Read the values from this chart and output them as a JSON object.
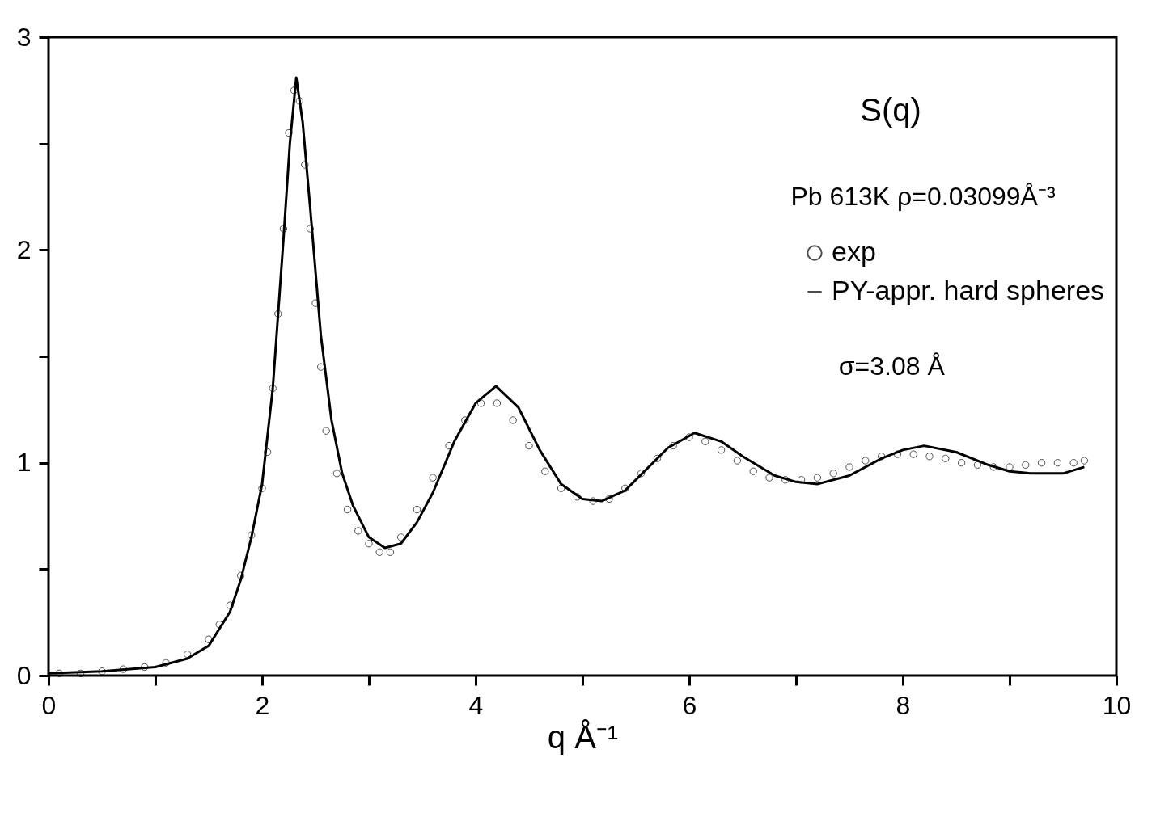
{
  "chart_data": {
    "type": "line",
    "xlabel": "q Å⁻¹",
    "annotations": [
      "S(q)",
      "Pb 613K  ρ=0.03099Å⁻³",
      "σ=3.08 Å"
    ],
    "xlim": [
      0,
      10
    ],
    "ylim": [
      0,
      3
    ],
    "xticks": [
      0,
      {
        "value": 1,
        "label": null
      },
      2,
      {
        "value": 3,
        "label": null
      },
      4,
      {
        "value": 5,
        "label": null
      },
      6,
      {
        "value": 7,
        "label": null
      },
      8,
      {
        "value": 9,
        "label": null
      },
      10
    ],
    "yticks": [
      0,
      {
        "value": 0.5,
        "label": null
      },
      1,
      {
        "value": 1.5,
        "label": null
      },
      2,
      {
        "value": 2.5,
        "label": null
      },
      3
    ],
    "grid": false,
    "legend": "top right",
    "series": [
      {
        "name": "exp",
        "type": "scatter",
        "marker": "circle",
        "color": "#000000",
        "x": [
          0.1,
          0.3,
          0.5,
          0.7,
          0.9,
          1.1,
          1.3,
          1.5,
          1.6,
          1.7,
          1.8,
          1.9,
          2.0,
          2.05,
          2.1,
          2.15,
          2.2,
          2.25,
          2.3,
          2.35,
          2.4,
          2.45,
          2.5,
          2.55,
          2.6,
          2.7,
          2.8,
          2.9,
          3.0,
          3.1,
          3.2,
          3.3,
          3.45,
          3.6,
          3.75,
          3.9,
          4.05,
          4.2,
          4.35,
          4.5,
          4.65,
          4.8,
          4.95,
          5.1,
          5.25,
          5.4,
          5.55,
          5.7,
          5.85,
          6.0,
          6.15,
          6.3,
          6.45,
          6.6,
          6.75,
          6.9,
          7.05,
          7.2,
          7.35,
          7.5,
          7.65,
          7.8,
          7.95,
          8.1,
          8.25,
          8.4,
          8.55,
          8.7,
          8.85,
          9.0,
          9.15,
          9.3,
          9.45,
          9.6,
          9.7
        ],
        "values": [
          0.01,
          0.01,
          0.02,
          0.03,
          0.04,
          0.06,
          0.1,
          0.17,
          0.24,
          0.33,
          0.47,
          0.66,
          0.88,
          1.05,
          1.35,
          1.7,
          2.1,
          2.55,
          2.75,
          2.7,
          2.4,
          2.1,
          1.75,
          1.45,
          1.15,
          0.95,
          0.78,
          0.68,
          0.62,
          0.58,
          0.58,
          0.65,
          0.78,
          0.93,
          1.08,
          1.2,
          1.28,
          1.28,
          1.2,
          1.08,
          0.96,
          0.88,
          0.84,
          0.82,
          0.83,
          0.88,
          0.95,
          1.02,
          1.08,
          1.12,
          1.1,
          1.06,
          1.01,
          0.96,
          0.93,
          0.92,
          0.92,
          0.93,
          0.95,
          0.98,
          1.01,
          1.03,
          1.04,
          1.04,
          1.03,
          1.02,
          1.0,
          0.99,
          0.98,
          0.98,
          0.99,
          1.0,
          1.0,
          1.0,
          1.01
        ]
      },
      {
        "name": "PY-appr. hard spheres",
        "type": "line",
        "color": "#000000",
        "line_style": "solid",
        "x": [
          0.0,
          0.5,
          1.0,
          1.3,
          1.5,
          1.7,
          1.8,
          1.9,
          2.0,
          2.1,
          2.2,
          2.26,
          2.32,
          2.38,
          2.45,
          2.55,
          2.65,
          2.75,
          2.85,
          3.0,
          3.15,
          3.3,
          3.45,
          3.6,
          3.8,
          4.0,
          4.19,
          4.4,
          4.6,
          4.8,
          5.0,
          5.18,
          5.4,
          5.6,
          5.8,
          6.05,
          6.3,
          6.5,
          6.8,
          7.0,
          7.2,
          7.5,
          7.8,
          8.0,
          8.2,
          8.5,
          8.8,
          9.0,
          9.2,
          9.5,
          9.7
        ],
        "values": [
          0.01,
          0.02,
          0.04,
          0.08,
          0.14,
          0.3,
          0.45,
          0.65,
          0.9,
          1.35,
          2.05,
          2.5,
          2.81,
          2.6,
          2.2,
          1.6,
          1.2,
          0.95,
          0.8,
          0.65,
          0.6,
          0.62,
          0.72,
          0.86,
          1.1,
          1.28,
          1.36,
          1.26,
          1.06,
          0.9,
          0.83,
          0.82,
          0.87,
          0.97,
          1.07,
          1.14,
          1.1,
          1.03,
          0.94,
          0.91,
          0.9,
          0.94,
          1.02,
          1.06,
          1.08,
          1.05,
          0.99,
          0.96,
          0.95,
          0.95,
          0.98
        ]
      }
    ]
  }
}
